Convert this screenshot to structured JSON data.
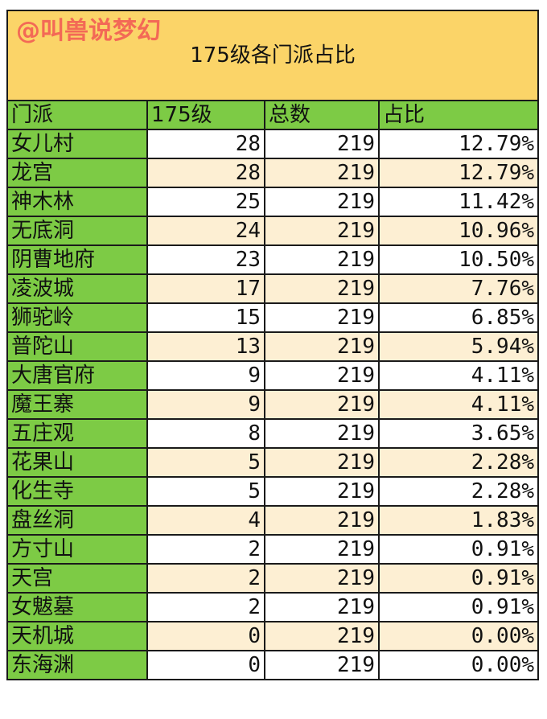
{
  "title": "175级各门派占比",
  "headers": [
    "门派",
    "175级",
    "总数",
    "占比"
  ],
  "rows": [
    [
      "女儿村",
      "28",
      "219",
      "12.79%"
    ],
    [
      "龙宫",
      "28",
      "219",
      "12.79%"
    ],
    [
      "神木林",
      "25",
      "219",
      "11.42%"
    ],
    [
      "无底洞",
      "24",
      "219",
      "10.96%"
    ],
    [
      "阴曹地府",
      "23",
      "219",
      "10.50%"
    ],
    [
      "凌波城",
      "17",
      "219",
      "7.76%"
    ],
    [
      "狮驼岭",
      "15",
      "219",
      "6.85%"
    ],
    [
      "普陀山",
      "13",
      "219",
      "5.94%"
    ],
    [
      "大唐官府",
      "9",
      "219",
      "4.11%"
    ],
    [
      "魔王寨",
      "9",
      "219",
      "4.11%"
    ],
    [
      "五庄观",
      "8",
      "219",
      "3.65%"
    ],
    [
      "花果山",
      "5",
      "219",
      "2.28%"
    ],
    [
      "化生寺",
      "5",
      "219",
      "2.28%"
    ],
    [
      "盘丝洞",
      "4",
      "219",
      "1.83%"
    ],
    [
      "方寸山",
      "2",
      "219",
      "0.91%"
    ],
    [
      "天宫",
      "2",
      "219",
      "0.91%"
    ],
    [
      "女魃墓",
      "2",
      "219",
      "0.91%"
    ],
    [
      "天机城",
      "0",
      "219",
      "0.00%"
    ],
    [
      "东海渊",
      "0",
      "219",
      "0.00%"
    ]
  ],
  "watermark": "@叫兽说梦幻",
  "colors": {
    "title_bg": "#fbd468",
    "header_bg": "#7dcb45",
    "alt_row_bg": "#fdefd3",
    "watermark": "#f04650"
  }
}
